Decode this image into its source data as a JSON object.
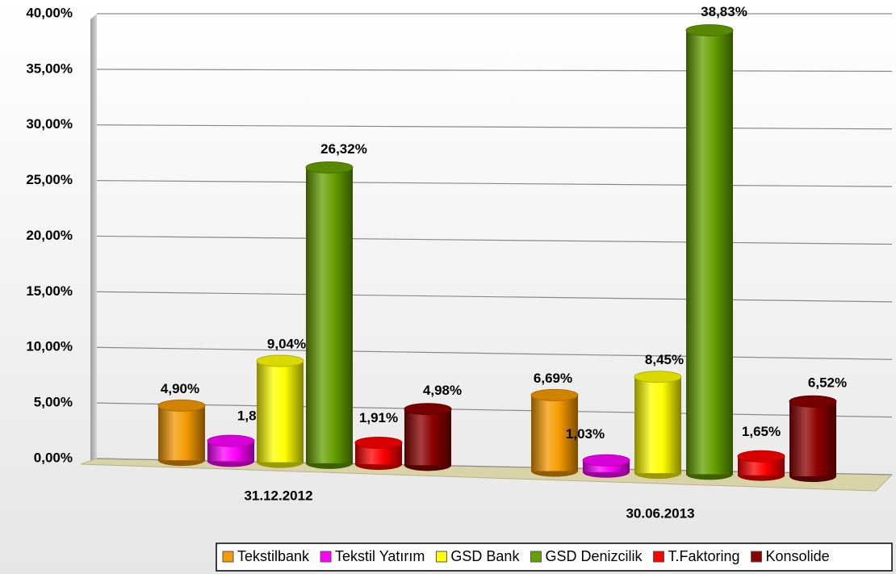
{
  "chart_data": {
    "type": "bar",
    "categories": [
      "31.12.2012",
      "30.06.2013"
    ],
    "series": [
      {
        "name": "Tekstilbank",
        "color": "#f59a00",
        "values": [
          4.9,
          6.69
        ],
        "value_labels": [
          "4,90%",
          "6,69%"
        ]
      },
      {
        "name": "Tekstil Yatırım",
        "color": "#ff00ff",
        "values": [
          1.82,
          1.03
        ],
        "value_labels": [
          "1,82%",
          "1,03%"
        ]
      },
      {
        "name": "GSD Bank",
        "color": "#ffff00",
        "values": [
          9.04,
          8.45
        ],
        "value_labels": [
          "9,04%",
          "8,45%"
        ]
      },
      {
        "name": "GSD Denizcilik",
        "color": "#66a000",
        "values": [
          26.32,
          38.83
        ],
        "value_labels": [
          "26,32%",
          "38,83%"
        ]
      },
      {
        "name": "T.Faktoring",
        "color": "#ff0000",
        "values": [
          1.91,
          1.65
        ],
        "value_labels": [
          "1,91%",
          "1,65%"
        ]
      },
      {
        "name": "Konsolide",
        "color": "#8b0000",
        "values": [
          4.98,
          6.52
        ],
        "value_labels": [
          "4,98%",
          "6,52%"
        ]
      }
    ],
    "ylim": [
      0,
      40
    ],
    "yticks": [
      {
        "value": 0,
        "label": "0,00%"
      },
      {
        "value": 5,
        "label": "5,00%"
      },
      {
        "value": 10,
        "label": "10,00%"
      },
      {
        "value": 15,
        "label": "15,00%"
      },
      {
        "value": 20,
        "label": "20,00%"
      },
      {
        "value": 25,
        "label": "25,00%"
      },
      {
        "value": 30,
        "label": "30,00%"
      },
      {
        "value": 35,
        "label": "35,00%"
      },
      {
        "value": 40,
        "label": "40,00%"
      }
    ],
    "grid": true,
    "legend": "bottom-right"
  }
}
